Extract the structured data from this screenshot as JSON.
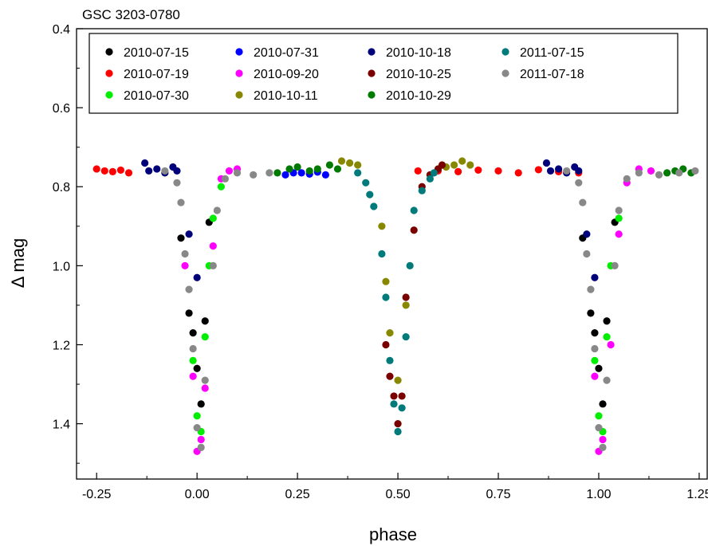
{
  "chart_data": {
    "type": "scatter",
    "title": "GSC 3203-0780",
    "xlabel": "phase",
    "ylabel": "Δ mag",
    "xlim": [
      -0.3,
      1.27
    ],
    "ylim": [
      1.54,
      0.4
    ],
    "y_inverted": true,
    "grid": false,
    "legend_position": "top",
    "x_ticks": [
      "-0.25",
      "0.00",
      "0.25",
      "0.50",
      "0.75",
      "1.00",
      "1.25"
    ],
    "y_ticks": [
      "0.4",
      "0.6",
      "0.8",
      "1.0",
      "1.2",
      "1.4"
    ],
    "series": [
      {
        "name": "2010-07-15",
        "color": "#000000",
        "points": [
          [
            -0.04,
            0.93
          ],
          [
            -0.02,
            1.12
          ],
          [
            -0.01,
            1.17
          ],
          [
            0.0,
            1.26
          ],
          [
            0.01,
            1.35
          ],
          [
            0.02,
            1.14
          ],
          [
            0.03,
            0.89
          ],
          [
            0.96,
            0.93
          ],
          [
            0.98,
            1.12
          ],
          [
            0.99,
            1.17
          ],
          [
            1.0,
            1.26
          ],
          [
            1.01,
            1.35
          ],
          [
            1.02,
            1.14
          ],
          [
            1.04,
            0.89
          ]
        ]
      },
      {
        "name": "2010-07-19",
        "color": "#ff0000",
        "points": [
          [
            -0.25,
            0.755
          ],
          [
            -0.23,
            0.76
          ],
          [
            -0.21,
            0.762
          ],
          [
            -0.19,
            0.758
          ],
          [
            -0.17,
            0.765
          ],
          [
            0.55,
            0.76
          ],
          [
            0.6,
            0.76
          ],
          [
            0.65,
            0.762
          ],
          [
            0.7,
            0.758
          ],
          [
            0.75,
            0.76
          ],
          [
            0.8,
            0.765
          ],
          [
            0.85,
            0.757
          ],
          [
            0.9,
            0.762
          ],
          [
            0.95,
            0.765
          ]
        ]
      },
      {
        "name": "2010-07-30",
        "color": "#00ee00",
        "points": [
          [
            -0.01,
            1.24
          ],
          [
            0.0,
            1.38
          ],
          [
            0.01,
            1.42
          ],
          [
            0.02,
            1.18
          ],
          [
            0.03,
            1.0
          ],
          [
            0.04,
            0.88
          ],
          [
            0.06,
            0.8
          ],
          [
            0.99,
            1.24
          ],
          [
            1.0,
            1.38
          ],
          [
            1.01,
            1.42
          ],
          [
            1.02,
            1.18
          ],
          [
            1.03,
            1.0
          ],
          [
            1.05,
            0.88
          ]
        ]
      },
      {
        "name": "2010-07-31",
        "color": "#0000ff",
        "points": [
          [
            0.22,
            0.77
          ],
          [
            0.24,
            0.765
          ],
          [
            0.26,
            0.765
          ],
          [
            0.28,
            0.768
          ],
          [
            0.3,
            0.763
          ],
          [
            0.32,
            0.77
          ]
        ]
      },
      {
        "name": "2010-09-20",
        "color": "#ff00ff",
        "points": [
          [
            -0.03,
            1.0
          ],
          [
            -0.01,
            1.28
          ],
          [
            0.0,
            1.47
          ],
          [
            0.01,
            1.44
          ],
          [
            0.02,
            1.31
          ],
          [
            0.04,
            0.95
          ],
          [
            0.06,
            0.78
          ],
          [
            0.08,
            0.76
          ],
          [
            0.1,
            0.755
          ],
          [
            0.99,
            1.28
          ],
          [
            1.0,
            1.47
          ],
          [
            1.01,
            1.44
          ],
          [
            1.03,
            1.2
          ],
          [
            1.05,
            0.92
          ],
          [
            1.07,
            0.79
          ],
          [
            1.1,
            0.755
          ],
          [
            1.13,
            0.76
          ]
        ]
      },
      {
        "name": "2010-10-11",
        "color": "#888800",
        "points": [
          [
            0.36,
            0.735
          ],
          [
            0.38,
            0.74
          ],
          [
            0.4,
            0.745
          ],
          [
            0.46,
            0.9
          ],
          [
            0.47,
            1.04
          ],
          [
            0.48,
            1.17
          ],
          [
            0.5,
            1.29
          ],
          [
            0.52,
            1.1
          ],
          [
            0.62,
            0.75
          ],
          [
            0.64,
            0.745
          ],
          [
            0.66,
            0.735
          ],
          [
            0.68,
            0.745
          ]
        ]
      },
      {
        "name": "2010-10-18",
        "color": "#00007a",
        "points": [
          [
            -0.13,
            0.74
          ],
          [
            -0.12,
            0.76
          ],
          [
            -0.1,
            0.755
          ],
          [
            -0.08,
            0.765
          ],
          [
            -0.06,
            0.75
          ],
          [
            -0.05,
            0.76
          ],
          [
            -0.02,
            0.92
          ],
          [
            0.0,
            1.03
          ],
          [
            0.87,
            0.74
          ],
          [
            0.88,
            0.76
          ],
          [
            0.9,
            0.755
          ],
          [
            0.92,
            0.765
          ],
          [
            0.94,
            0.75
          ],
          [
            0.95,
            0.76
          ],
          [
            0.97,
            0.92
          ],
          [
            0.99,
            1.03
          ]
        ]
      },
      {
        "name": "2010-10-25",
        "color": "#7a0000",
        "points": [
          [
            0.47,
            1.2
          ],
          [
            0.48,
            1.28
          ],
          [
            0.49,
            1.33
          ],
          [
            0.5,
            1.4
          ],
          [
            0.51,
            1.33
          ],
          [
            0.52,
            1.08
          ],
          [
            0.54,
            0.91
          ],
          [
            0.56,
            0.8
          ],
          [
            0.58,
            0.77
          ],
          [
            0.6,
            0.755
          ],
          [
            0.61,
            0.745
          ]
        ]
      },
      {
        "name": "2010-10-29",
        "color": "#007a00",
        "points": [
          [
            0.2,
            0.765
          ],
          [
            0.23,
            0.755
          ],
          [
            0.25,
            0.75
          ],
          [
            0.28,
            0.76
          ],
          [
            0.3,
            0.755
          ],
          [
            0.33,
            0.745
          ],
          [
            0.35,
            0.755
          ],
          [
            1.17,
            0.765
          ],
          [
            1.19,
            0.76
          ],
          [
            1.21,
            0.755
          ],
          [
            1.23,
            0.765
          ]
        ]
      },
      {
        "name": "2011-07-15",
        "color": "#007a7a",
        "points": [
          [
            0.4,
            0.765
          ],
          [
            0.42,
            0.79
          ],
          [
            0.43,
            0.82
          ],
          [
            0.44,
            0.85
          ],
          [
            0.46,
            0.97
          ],
          [
            0.47,
            1.08
          ],
          [
            0.48,
            1.24
          ],
          [
            0.49,
            1.35
          ],
          [
            0.5,
            1.42
          ],
          [
            0.51,
            1.36
          ],
          [
            0.52,
            1.18
          ],
          [
            0.53,
            1.0
          ],
          [
            0.54,
            0.86
          ],
          [
            0.56,
            0.81
          ],
          [
            0.58,
            0.78
          ],
          [
            0.59,
            0.765
          ]
        ]
      },
      {
        "name": "2011-07-18",
        "color": "#888888",
        "points": [
          [
            -0.08,
            0.76
          ],
          [
            -0.05,
            0.79
          ],
          [
            -0.04,
            0.84
          ],
          [
            -0.03,
            0.97
          ],
          [
            -0.02,
            1.06
          ],
          [
            -0.01,
            1.21
          ],
          [
            0.0,
            1.41
          ],
          [
            0.01,
            1.46
          ],
          [
            0.02,
            1.29
          ],
          [
            0.04,
            1.0
          ],
          [
            0.05,
            0.86
          ],
          [
            0.07,
            0.78
          ],
          [
            0.1,
            0.765
          ],
          [
            0.14,
            0.77
          ],
          [
            0.18,
            0.765
          ],
          [
            0.92,
            0.76
          ],
          [
            0.95,
            0.79
          ],
          [
            0.96,
            0.84
          ],
          [
            0.97,
            0.97
          ],
          [
            0.98,
            1.06
          ],
          [
            0.99,
            1.21
          ],
          [
            1.0,
            1.41
          ],
          [
            1.01,
            1.46
          ],
          [
            1.02,
            1.29
          ],
          [
            1.04,
            1.0
          ],
          [
            1.05,
            0.86
          ],
          [
            1.07,
            0.78
          ],
          [
            1.1,
            0.765
          ],
          [
            1.15,
            0.77
          ],
          [
            1.2,
            0.765
          ],
          [
            1.24,
            0.76
          ]
        ]
      }
    ]
  }
}
